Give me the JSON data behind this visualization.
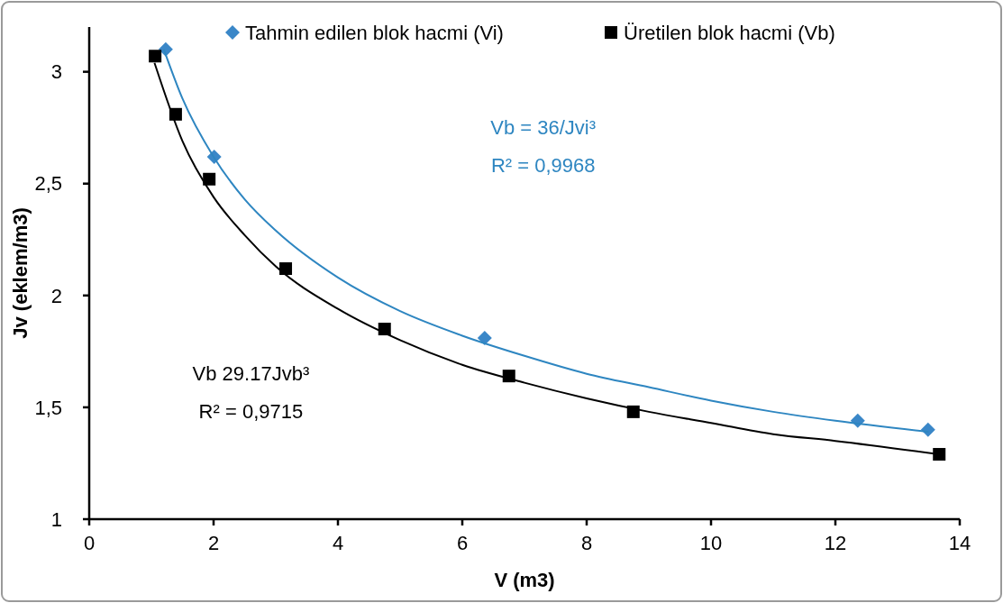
{
  "chart_data": {
    "type": "scatter",
    "xlabel": "V (m3)",
    "ylabel": "Jv (eklem/m3)",
    "xlim": [
      0,
      14
    ],
    "xticks": [
      0,
      2,
      4,
      6,
      8,
      10,
      12,
      14
    ],
    "ylim": [
      1,
      3.2
    ],
    "yticks": [
      1,
      {
        "value": 1.5,
        "label": "1,5"
      },
      2,
      {
        "value": 2.5,
        "label": "2,5"
      },
      3
    ],
    "legend": "top right",
    "grid": false,
    "annotations": [
      "Vb = 36/Jvi³",
      "R² = 0,9968",
      "Vb 29.17Jvb³",
      "R² = 0,9715"
    ],
    "series": [
      {
        "name": "Tahmin edilen blok hacmi (Vi)",
        "marker": "diamond",
        "color": "#3a87c8",
        "x": [
          1.23,
          2.01,
          6.36,
          12.36,
          13.49
        ],
        "values": [
          3.1,
          2.62,
          1.81,
          1.44,
          1.4
        ]
      },
      {
        "name": "Üretilen blok hacmi (Vb)",
        "marker": "square",
        "color": "#000000",
        "x": [
          1.06,
          1.39,
          1.93,
          3.16,
          4.75,
          6.75,
          8.75,
          13.67
        ],
        "values": [
          3.07,
          2.81,
          2.52,
          2.12,
          1.85,
          1.64,
          1.48,
          1.29
        ]
      },
      {
        "type": "line",
        "marker": "none",
        "line_style": "solid",
        "color": "#2e86c1",
        "x": [
          1.2,
          1.5,
          2,
          2.5,
          3,
          4,
          5,
          6,
          7,
          8,
          9,
          10,
          11,
          12,
          13.5
        ],
        "values": [
          3.1,
          2.88,
          2.62,
          2.43,
          2.29,
          2.08,
          1.93,
          1.82,
          1.73,
          1.65,
          1.59,
          1.53,
          1.48,
          1.44,
          1.39
        ]
      },
      {
        "type": "line",
        "marker": "none",
        "line_style": "solid",
        "color": "#000000",
        "x": [
          1.05,
          1.5,
          2,
          2.5,
          3,
          4,
          5,
          6,
          7,
          8,
          9,
          10,
          11,
          12,
          13.67
        ],
        "values": [
          3.04,
          2.69,
          2.44,
          2.27,
          2.13,
          1.94,
          1.8,
          1.69,
          1.61,
          1.54,
          1.48,
          1.43,
          1.38,
          1.35,
          1.29
        ]
      }
    ]
  }
}
